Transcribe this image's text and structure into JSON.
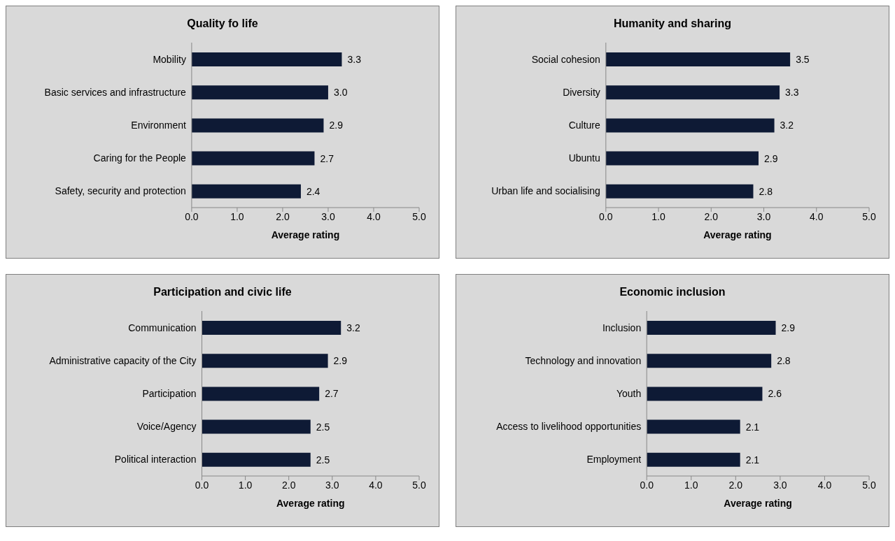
{
  "chart_data": [
    {
      "type": "bar",
      "orientation": "horizontal",
      "title": "Quality fo life",
      "xlabel": "Average rating",
      "categories": [
        "Mobility",
        "Basic services and infrastructure",
        "Environment",
        "Caring for the People",
        "Safety, security and  protection"
      ],
      "values": [
        3.3,
        3.0,
        2.9,
        2.7,
        2.4
      ],
      "value_labels": [
        "3.3",
        "3.0",
        "2.9",
        "2.7",
        "2.4"
      ],
      "color": "#0e1a35",
      "xlim": [
        0,
        5
      ],
      "xticks": [
        {
          "value": 0,
          "label": "0.0"
        },
        {
          "value": 1,
          "label": "1.0"
        },
        {
          "value": 2,
          "label": "2.0"
        },
        {
          "value": 3,
          "label": "3.0"
        },
        {
          "value": 4,
          "label": "4.0"
        },
        {
          "value": 5,
          "label": "5.0"
        }
      ]
    },
    {
      "type": "bar",
      "orientation": "horizontal",
      "title": "Humanity and sharing",
      "xlabel": "Average rating",
      "categories": [
        "Social cohesion",
        "Diversity",
        "Culture",
        "Ubuntu",
        "Urban life and socialising"
      ],
      "values": [
        3.5,
        3.3,
        3.2,
        2.9,
        2.8
      ],
      "value_labels": [
        "3.5",
        "3.3",
        "3.2",
        "2.9",
        "2.8"
      ],
      "color": "#0e1a35",
      "xlim": [
        0,
        5
      ],
      "xticks": [
        {
          "value": 0,
          "label": "0.0"
        },
        {
          "value": 1,
          "label": "1.0"
        },
        {
          "value": 2,
          "label": "2.0"
        },
        {
          "value": 3,
          "label": "3.0"
        },
        {
          "value": 4,
          "label": "4.0"
        },
        {
          "value": 5,
          "label": "5.0"
        }
      ]
    },
    {
      "type": "bar",
      "orientation": "horizontal",
      "title": "Participation and civic life",
      "xlabel": "Average rating",
      "categories": [
        "Communication",
        "Administrative capacity of the City",
        "Participation",
        "Voice/Agency",
        "Political interaction"
      ],
      "values": [
        3.2,
        2.9,
        2.7,
        2.5,
        2.5
      ],
      "value_labels": [
        "3.2",
        "2.9",
        "2.7",
        "2.5",
        "2.5"
      ],
      "color": "#0e1a35",
      "xlim": [
        0,
        5
      ],
      "xticks": [
        {
          "value": 0,
          "label": "0.0"
        },
        {
          "value": 1,
          "label": "1.0"
        },
        {
          "value": 2,
          "label": "2.0"
        },
        {
          "value": 3,
          "label": "3.0"
        },
        {
          "value": 4,
          "label": "4.0"
        },
        {
          "value": 5,
          "label": "5.0"
        }
      ]
    },
    {
      "type": "bar",
      "orientation": "horizontal",
      "title": "Economic inclusion",
      "xlabel": "Average rating",
      "categories": [
        "Inclusion",
        "Technology and innovation",
        "Youth",
        "Access to livelihood opportunities",
        "Employment"
      ],
      "values": [
        2.9,
        2.8,
        2.6,
        2.1,
        2.1
      ],
      "value_labels": [
        "2.9",
        "2.8",
        "2.6",
        "2.1",
        "2.1"
      ],
      "color": "#0e1a35",
      "xlim": [
        0,
        5
      ],
      "xticks": [
        {
          "value": 0,
          "label": "0.0"
        },
        {
          "value": 1,
          "label": "1.0"
        },
        {
          "value": 2,
          "label": "2.0"
        },
        {
          "value": 3,
          "label": "3.0"
        },
        {
          "value": 4,
          "label": "4.0"
        },
        {
          "value": 5,
          "label": "5.0"
        }
      ]
    }
  ]
}
